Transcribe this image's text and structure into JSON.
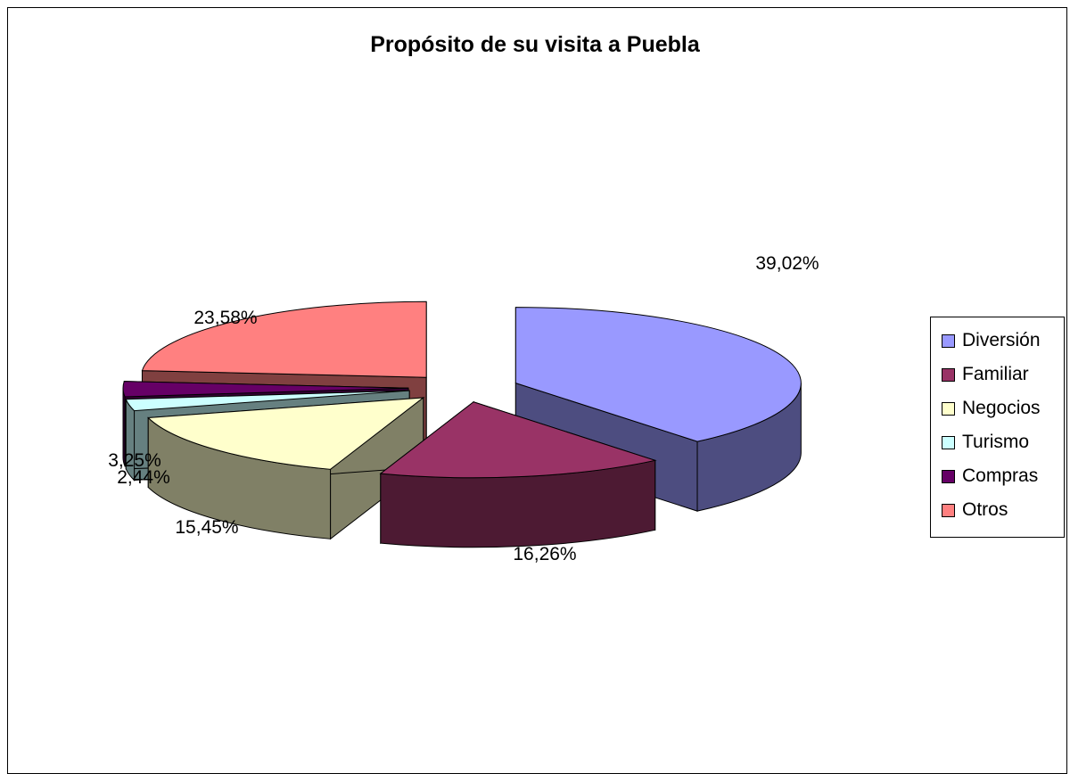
{
  "chart_data": {
    "type": "pie",
    "title": "Propósito de su visita a Puebla",
    "categories": [
      "Diversión",
      "Familiar",
      "Negocios",
      "Turismo",
      "Compras",
      "Otros"
    ],
    "values": [
      39.02,
      16.26,
      15.45,
      2.44,
      3.25,
      23.58
    ],
    "data_labels": [
      "39,02%",
      "16,26%",
      "15,45%",
      "2,44%",
      "3,25%",
      "23,58%"
    ],
    "colors": [
      "#9999FF",
      "#993366",
      "#FFFFCC",
      "#CCFFFF",
      "#660066",
      "#FF8080"
    ],
    "legend_position": "right",
    "style": "3d-exploded"
  }
}
